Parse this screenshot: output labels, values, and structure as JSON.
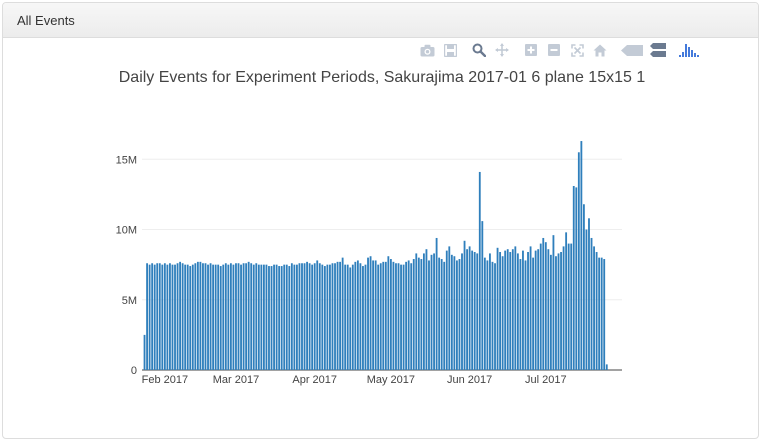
{
  "panel": {
    "title": "All Events"
  },
  "modebar": {
    "buttons": [
      "camera-icon",
      "save-icon",
      "zoom-icon",
      "pan-icon",
      "zoom-in-icon",
      "zoom-out-icon",
      "autoscale-icon",
      "home-icon",
      "hover-closest-icon",
      "hover-compare-icon",
      "plotly-logo-icon"
    ]
  },
  "colors": {
    "bar": "#2f7fbc",
    "grid": "#eeeeee",
    "text": "#444444"
  },
  "chart_data": {
    "type": "bar",
    "title": "Daily Events for Experiment Periods, Sakurajima 2017-01 6 plane 15x15 1",
    "xlabel": "",
    "ylabel": "",
    "x_start": "2017-01-24",
    "x_end": "2017-07-30",
    "xlim": [
      "2017-01-23",
      "2017-07-31"
    ],
    "ylim": [
      0,
      17300000
    ],
    "grid": true,
    "x_tick_labels": [
      {
        "date": "2017-02-01",
        "label": "Feb 2017"
      },
      {
        "date": "2017-03-01",
        "label": "Mar 2017"
      },
      {
        "date": "2017-04-01",
        "label": "Apr 2017"
      },
      {
        "date": "2017-05-01",
        "label": "May 2017"
      },
      {
        "date": "2017-06-01",
        "label": "Jun 2017"
      },
      {
        "date": "2017-07-01",
        "label": "Jul 2017"
      }
    ],
    "y_ticks": [
      {
        "value": 0,
        "label": "0"
      },
      {
        "value": 5000000,
        "label": "5M"
      },
      {
        "value": 10000000,
        "label": "10M"
      },
      {
        "value": 15000000,
        "label": "15M"
      }
    ],
    "values": [
      2500000,
      7600000,
      7500000,
      7600000,
      7500000,
      7600000,
      7600000,
      7500000,
      7600000,
      7500000,
      7600000,
      7500000,
      7500000,
      7600000,
      7700000,
      7600000,
      7500000,
      7500000,
      7400000,
      7500000,
      7600000,
      7700000,
      7700000,
      7600000,
      7600000,
      7500000,
      7600000,
      7500000,
      7500000,
      7500000,
      7400000,
      7500000,
      7600000,
      7500000,
      7600000,
      7500000,
      7600000,
      7600000,
      7500000,
      7600000,
      7600000,
      7700000,
      7600000,
      7500000,
      7600000,
      7500000,
      7500000,
      7500000,
      7500000,
      7400000,
      7400000,
      7500000,
      7500000,
      7400000,
      7400000,
      7500000,
      7500000,
      7400000,
      7600000,
      7500000,
      7500000,
      7600000,
      7600000,
      7600000,
      7700000,
      7600000,
      7500000,
      7600000,
      7800000,
      7600000,
      7500000,
      7400000,
      7500000,
      7500000,
      7600000,
      7600000,
      7700000,
      7700000,
      8000000,
      7500000,
      7500000,
      7300000,
      7500000,
      7700000,
      7800000,
      7600000,
      7400000,
      7500000,
      8000000,
      8100000,
      7800000,
      7800000,
      7500000,
      7600000,
      7700000,
      7700000,
      8100000,
      7900000,
      7700000,
      7600000,
      7600000,
      7500000,
      7500000,
      7700000,
      7800000,
      7600000,
      7900000,
      8300000,
      8000000,
      7900000,
      8300000,
      8600000,
      7800000,
      8200000,
      8300000,
      9400000,
      8000000,
      7900000,
      7700000,
      8500000,
      8800000,
      8200000,
      8100000,
      7800000,
      7900000,
      8300000,
      9200000,
      8600000,
      8800000,
      8500000,
      8400000,
      8300000,
      14100000,
      10600000,
      8000000,
      7800000,
      8300000,
      7700000,
      7600000,
      8700000,
      8400000,
      8100000,
      8500000,
      8600000,
      8400000,
      8600000,
      8800000,
      8300000,
      7900000,
      8500000,
      7800000,
      8400000,
      8800000,
      8000000,
      8500000,
      8600000,
      9000000,
      9400000,
      9100000,
      8600000,
      8200000,
      9600000,
      8100000,
      8300000,
      8400000,
      8800000,
      9800000,
      9000000,
      9000000,
      13100000,
      13000000,
      15500000,
      16300000,
      11800000,
      10000000,
      10800000,
      9400000,
      8800000,
      8400000,
      8000000,
      8000000,
      7900000,
      400000
    ]
  }
}
